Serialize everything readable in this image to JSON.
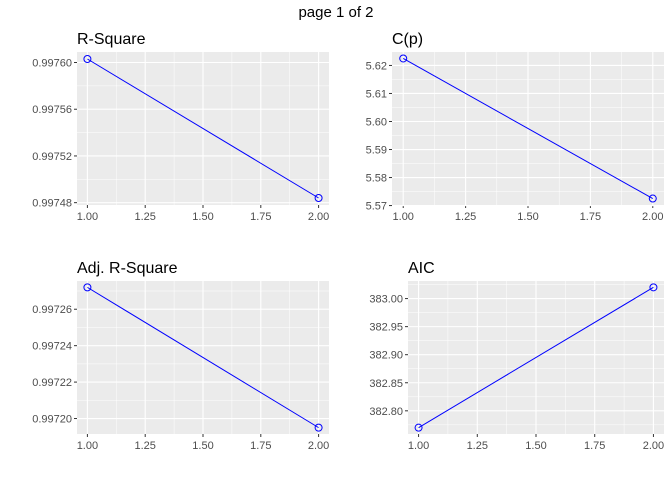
{
  "page_title": "page 1 of 2",
  "colors": {
    "series": "#0000ff",
    "panel_background": "#ebebeb",
    "grid": "#ffffff"
  },
  "chart_data": [
    {
      "type": "line",
      "title": "R-Square",
      "x": [
        1,
        2
      ],
      "values": [
        0.997603,
        0.997484
      ],
      "xlim": [
        0.955,
        2.045
      ],
      "ylim": [
        0.997478,
        0.997609
      ],
      "xticks": [
        1.0,
        1.25,
        1.5,
        1.75,
        2.0
      ],
      "xtick_labels": [
        "1.00",
        "1.25",
        "1.50",
        "1.75",
        "2.00"
      ],
      "yticks": [
        0.99748,
        0.99752,
        0.99756,
        0.9976
      ],
      "ytick_labels": [
        "0.99748",
        "0.99752",
        "0.99756",
        "0.99760"
      ],
      "grid": true,
      "markers": "open-circle"
    },
    {
      "type": "line",
      "title": "C(p)",
      "x": [
        1,
        2
      ],
      "values": [
        5.6225,
        5.5725
      ],
      "xlim": [
        0.955,
        2.045
      ],
      "ylim": [
        5.5702,
        5.6248
      ],
      "xticks": [
        1.0,
        1.25,
        1.5,
        1.75,
        2.0
      ],
      "xtick_labels": [
        "1.00",
        "1.25",
        "1.50",
        "1.75",
        "2.00"
      ],
      "yticks": [
        5.57,
        5.58,
        5.59,
        5.6,
        5.61,
        5.62
      ],
      "ytick_labels": [
        "5.57",
        "5.58",
        "5.59",
        "5.60",
        "5.61",
        "5.62"
      ],
      "grid": true,
      "markers": "open-circle"
    },
    {
      "type": "line",
      "title": "Adj. R-Square",
      "x": [
        1,
        2
      ],
      "values": [
        0.997272,
        0.997195
      ],
      "xlim": [
        0.955,
        2.045
      ],
      "ylim": [
        0.9971915,
        0.9972755
      ],
      "xticks": [
        1.0,
        1.25,
        1.5,
        1.75,
        2.0
      ],
      "xtick_labels": [
        "1.00",
        "1.25",
        "1.50",
        "1.75",
        "2.00"
      ],
      "yticks": [
        0.9972,
        0.99722,
        0.99724,
        0.99726
      ],
      "ytick_labels": [
        "0.99720",
        "0.99722",
        "0.99724",
        "0.99726"
      ],
      "grid": true,
      "markers": "open-circle"
    },
    {
      "type": "line",
      "title": "AIC",
      "x": [
        1,
        2
      ],
      "values": [
        382.77,
        383.02
      ],
      "xlim": [
        0.955,
        2.045
      ],
      "ylim": [
        382.7587,
        383.0313
      ],
      "xticks": [
        1.0,
        1.25,
        1.5,
        1.75,
        2.0
      ],
      "xtick_labels": [
        "1.00",
        "1.25",
        "1.50",
        "1.75",
        "2.00"
      ],
      "yticks": [
        382.8,
        382.85,
        382.9,
        382.95,
        383.0
      ],
      "ytick_labels": [
        "382.80",
        "382.85",
        "382.90",
        "382.95",
        "383.00"
      ],
      "grid": true,
      "markers": "open-circle"
    }
  ]
}
